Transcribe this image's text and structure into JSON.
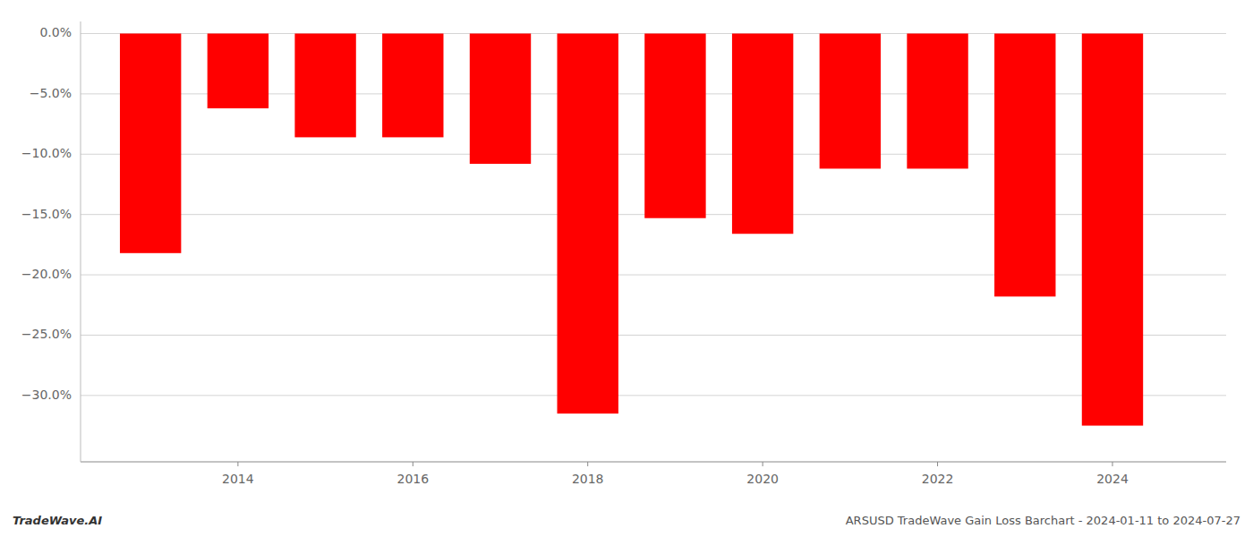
{
  "chart_data": {
    "type": "bar",
    "title": "ARSUSD TradeWave Gain Loss Barchart - 2024-01-11 to 2024-07-27",
    "annotations": [
      "TradeWave.AI"
    ],
    "x": [
      2013,
      2014,
      2015,
      2016,
      2017,
      2018,
      2019,
      2020,
      2021,
      2022,
      2023,
      2024
    ],
    "values": [
      -18.2,
      -6.2,
      -8.6,
      -8.6,
      -10.8,
      -31.5,
      -15.3,
      -16.6,
      -11.2,
      -11.2,
      -21.8,
      -32.5
    ],
    "color": "#ff0000",
    "xlim": [
      2012.2,
      2025.3
    ],
    "xticks": [
      2014,
      2016,
      2018,
      2020,
      2022,
      2024
    ],
    "ylim": [
      -35.5,
      1.0
    ],
    "yticks": [
      {
        "value": 0.0,
        "label": "0.0%"
      },
      {
        "value": -5.0,
        "label": "−5.0%"
      },
      {
        "value": -10.0,
        "label": "−10.0%"
      },
      {
        "value": -15.0,
        "label": "−15.0%"
      },
      {
        "value": -20.0,
        "label": "−20.0%"
      },
      {
        "value": -25.0,
        "label": "−25.0%"
      },
      {
        "value": -30.0,
        "label": "−30.0%"
      }
    ],
    "grid": true
  }
}
